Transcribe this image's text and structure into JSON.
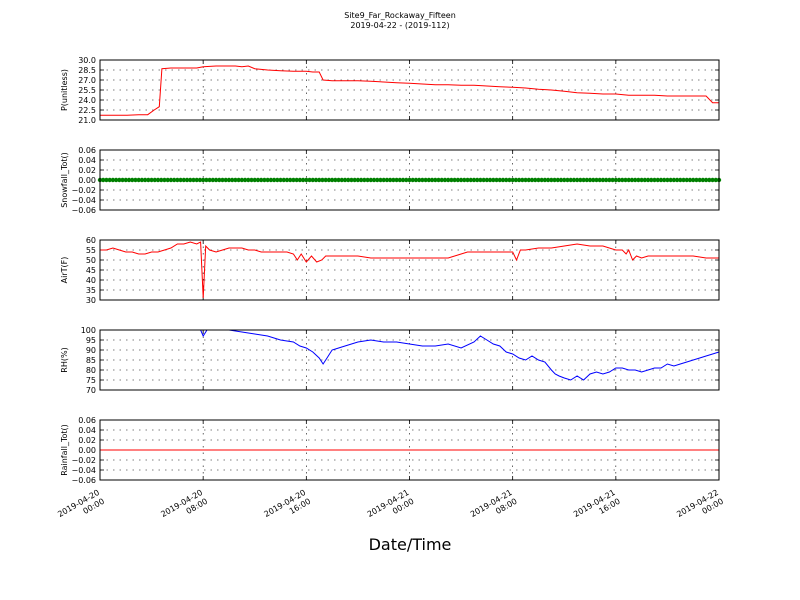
{
  "figure": {
    "title": "Site9_Far_Rockaway_Fifteen",
    "subtitle": "2019-04-22 - (2019-112)",
    "xlabel": "Date/Time",
    "x_ticks": [
      "2019-04-20\n00:00",
      "2019-04-20\n08:00",
      "2019-04-20\n16:00",
      "2019-04-21\n00:00",
      "2019-04-21\n08:00",
      "2019-04-21\n16:00",
      "2019-04-22\n00:00"
    ],
    "grid": true
  },
  "chart_data": [
    {
      "type": "line",
      "ylabel": "P(unitless)",
      "ylim": [
        21.0,
        30.0
      ],
      "yticks": [
        "21.0",
        "22.5",
        "24.0",
        "25.5",
        "27.0",
        "28.5",
        "30.0"
      ],
      "xlim_hours": [
        0,
        48
      ],
      "series": [
        {
          "color": "#ff0000",
          "x": [
            0,
            1,
            2,
            3,
            3.7,
            4.2,
            4.6,
            4.8,
            5.5,
            6.5,
            7.5,
            8,
            9,
            10,
            10.5,
            11,
            11.5,
            12,
            13,
            14,
            15,
            16,
            16.5,
            17,
            17.3,
            18,
            19,
            20,
            21,
            22,
            23,
            24,
            25,
            26,
            27,
            28,
            29,
            30,
            31,
            32,
            33,
            34,
            35,
            36,
            37,
            38,
            39,
            40,
            41,
            42,
            43,
            44,
            45,
            46,
            47,
            47.5,
            48
          ],
          "y": [
            21.7,
            21.7,
            21.7,
            21.8,
            21.8,
            22.5,
            23.0,
            28.7,
            28.8,
            28.8,
            28.8,
            29.0,
            29.1,
            29.1,
            29.1,
            29.0,
            29.1,
            28.7,
            28.5,
            28.4,
            28.3,
            28.3,
            28.2,
            28.2,
            27.0,
            26.9,
            26.9,
            26.9,
            26.8,
            26.7,
            26.6,
            26.5,
            26.4,
            26.3,
            26.3,
            26.2,
            26.2,
            26.1,
            26.0,
            25.9,
            25.8,
            25.6,
            25.5,
            25.3,
            25.1,
            25.0,
            24.9,
            24.9,
            24.7,
            24.7,
            24.7,
            24.6,
            24.6,
            24.6,
            24.6,
            23.6,
            23.6
          ]
        }
      ]
    },
    {
      "type": "scatter",
      "ylabel": "Snowfall_Tot()",
      "ylim": [
        -0.06,
        0.06
      ],
      "yticks": [
        "−0.06",
        "−0.04",
        "−0.02",
        "0.00",
        "0.02",
        "0.04",
        "0.06"
      ],
      "xlim_hours": [
        0,
        48
      ],
      "series": [
        {
          "color": "#008000",
          "constant": 0.0
        }
      ]
    },
    {
      "type": "line",
      "ylabel": "AirT(F)",
      "ylim": [
        30,
        60
      ],
      "yticks": [
        "30",
        "35",
        "40",
        "45",
        "50",
        "55",
        "60"
      ],
      "xlim_hours": [
        0,
        48
      ],
      "series": [
        {
          "color": "#ff0000",
          "x": [
            0,
            0.5,
            1,
            1.5,
            2,
            2.5,
            3,
            3.5,
            4,
            4.5,
            5,
            5.5,
            6,
            6.5,
            7,
            7.5,
            7.8,
            8.0,
            8.2,
            8.5,
            9,
            9.5,
            10,
            10.5,
            11,
            11.5,
            12,
            12.5,
            13,
            13.5,
            14,
            14.5,
            15,
            15.3,
            15.6,
            16,
            16.4,
            16.8,
            17.2,
            17.5,
            18,
            19,
            20,
            21,
            22,
            23,
            24,
            25,
            26,
            27,
            28,
            28.5,
            29,
            29.5,
            30,
            31,
            32,
            32.3,
            32.6,
            33,
            34,
            35,
            36,
            37,
            38,
            39,
            40,
            40.5,
            40.8,
            41,
            41.3,
            41.6,
            42,
            42.5,
            43,
            44,
            45,
            46,
            47,
            48
          ],
          "y": [
            55,
            55,
            56,
            55,
            54,
            54,
            53,
            53,
            54,
            54,
            55,
            56,
            58,
            58,
            59,
            58,
            59,
            31,
            57,
            55,
            54,
            55,
            56,
            56,
            56,
            55,
            55,
            54,
            54,
            54,
            54,
            54,
            53,
            50,
            53,
            49,
            52,
            49,
            50,
            52,
            52,
            52,
            52,
            51,
            51,
            51,
            51,
            51,
            51,
            51,
            53,
            54,
            54,
            54,
            54,
            54,
            54,
            50,
            55,
            55,
            56,
            56,
            57,
            58,
            57,
            57,
            55,
            55,
            53,
            55,
            50,
            52,
            51,
            52,
            52,
            52,
            52,
            52,
            51,
            51
          ]
        }
      ]
    },
    {
      "type": "line",
      "ylabel": "RH(%)",
      "ylim": [
        70,
        100
      ],
      "yticks": [
        "70",
        "75",
        "80",
        "85",
        "90",
        "95",
        "100"
      ],
      "xlim_hours": [
        0,
        48
      ],
      "series": [
        {
          "color": "#0000ff",
          "x": [
            7.5,
            7.8,
            8.0,
            8.3,
            9,
            10,
            11,
            12,
            13,
            14,
            15,
            15.5,
            16,
            16.5,
            17,
            17.3,
            17.6,
            18,
            18.5,
            19,
            20,
            21,
            22,
            23,
            24,
            25,
            26,
            27,
            28,
            29,
            29.5,
            30,
            30.5,
            31,
            31.5,
            32,
            32.5,
            33,
            33.5,
            34,
            34.5,
            35,
            35.3,
            35.6,
            36,
            36.5,
            37,
            37.5,
            38,
            38.5,
            39,
            39.5,
            40,
            40.5,
            41,
            41.5,
            42,
            42.5,
            43,
            43.5,
            44,
            44.5,
            45,
            45.5,
            46,
            46.5,
            47,
            47.5,
            48
          ],
          "y": [
            100,
            100,
            97,
            100,
            100,
            100,
            99,
            98,
            97,
            95,
            94,
            92,
            91,
            89,
            86,
            83,
            86,
            90,
            91,
            92,
            94,
            95,
            94,
            94,
            93,
            92,
            92,
            93,
            91,
            94,
            97,
            95,
            93,
            92,
            89,
            88,
            86,
            85,
            87,
            85,
            84,
            80,
            78,
            77,
            76,
            75,
            77,
            75,
            78,
            79,
            78,
            79,
            81,
            81,
            80,
            80,
            79,
            80,
            81,
            81,
            83,
            82,
            83,
            84,
            85,
            86,
            87,
            88,
            89
          ]
        }
      ]
    },
    {
      "type": "line",
      "ylabel": "Rainfall_Tot()",
      "ylim": [
        -0.06,
        0.06
      ],
      "yticks": [
        "−0.06",
        "−0.04",
        "−0.02",
        "0.00",
        "0.02",
        "0.04",
        "0.06"
      ],
      "xlim_hours": [
        0,
        48
      ],
      "series": [
        {
          "color": "#ff0000",
          "x": [
            0,
            48
          ],
          "y": [
            0.0,
            0.0
          ]
        }
      ]
    }
  ]
}
